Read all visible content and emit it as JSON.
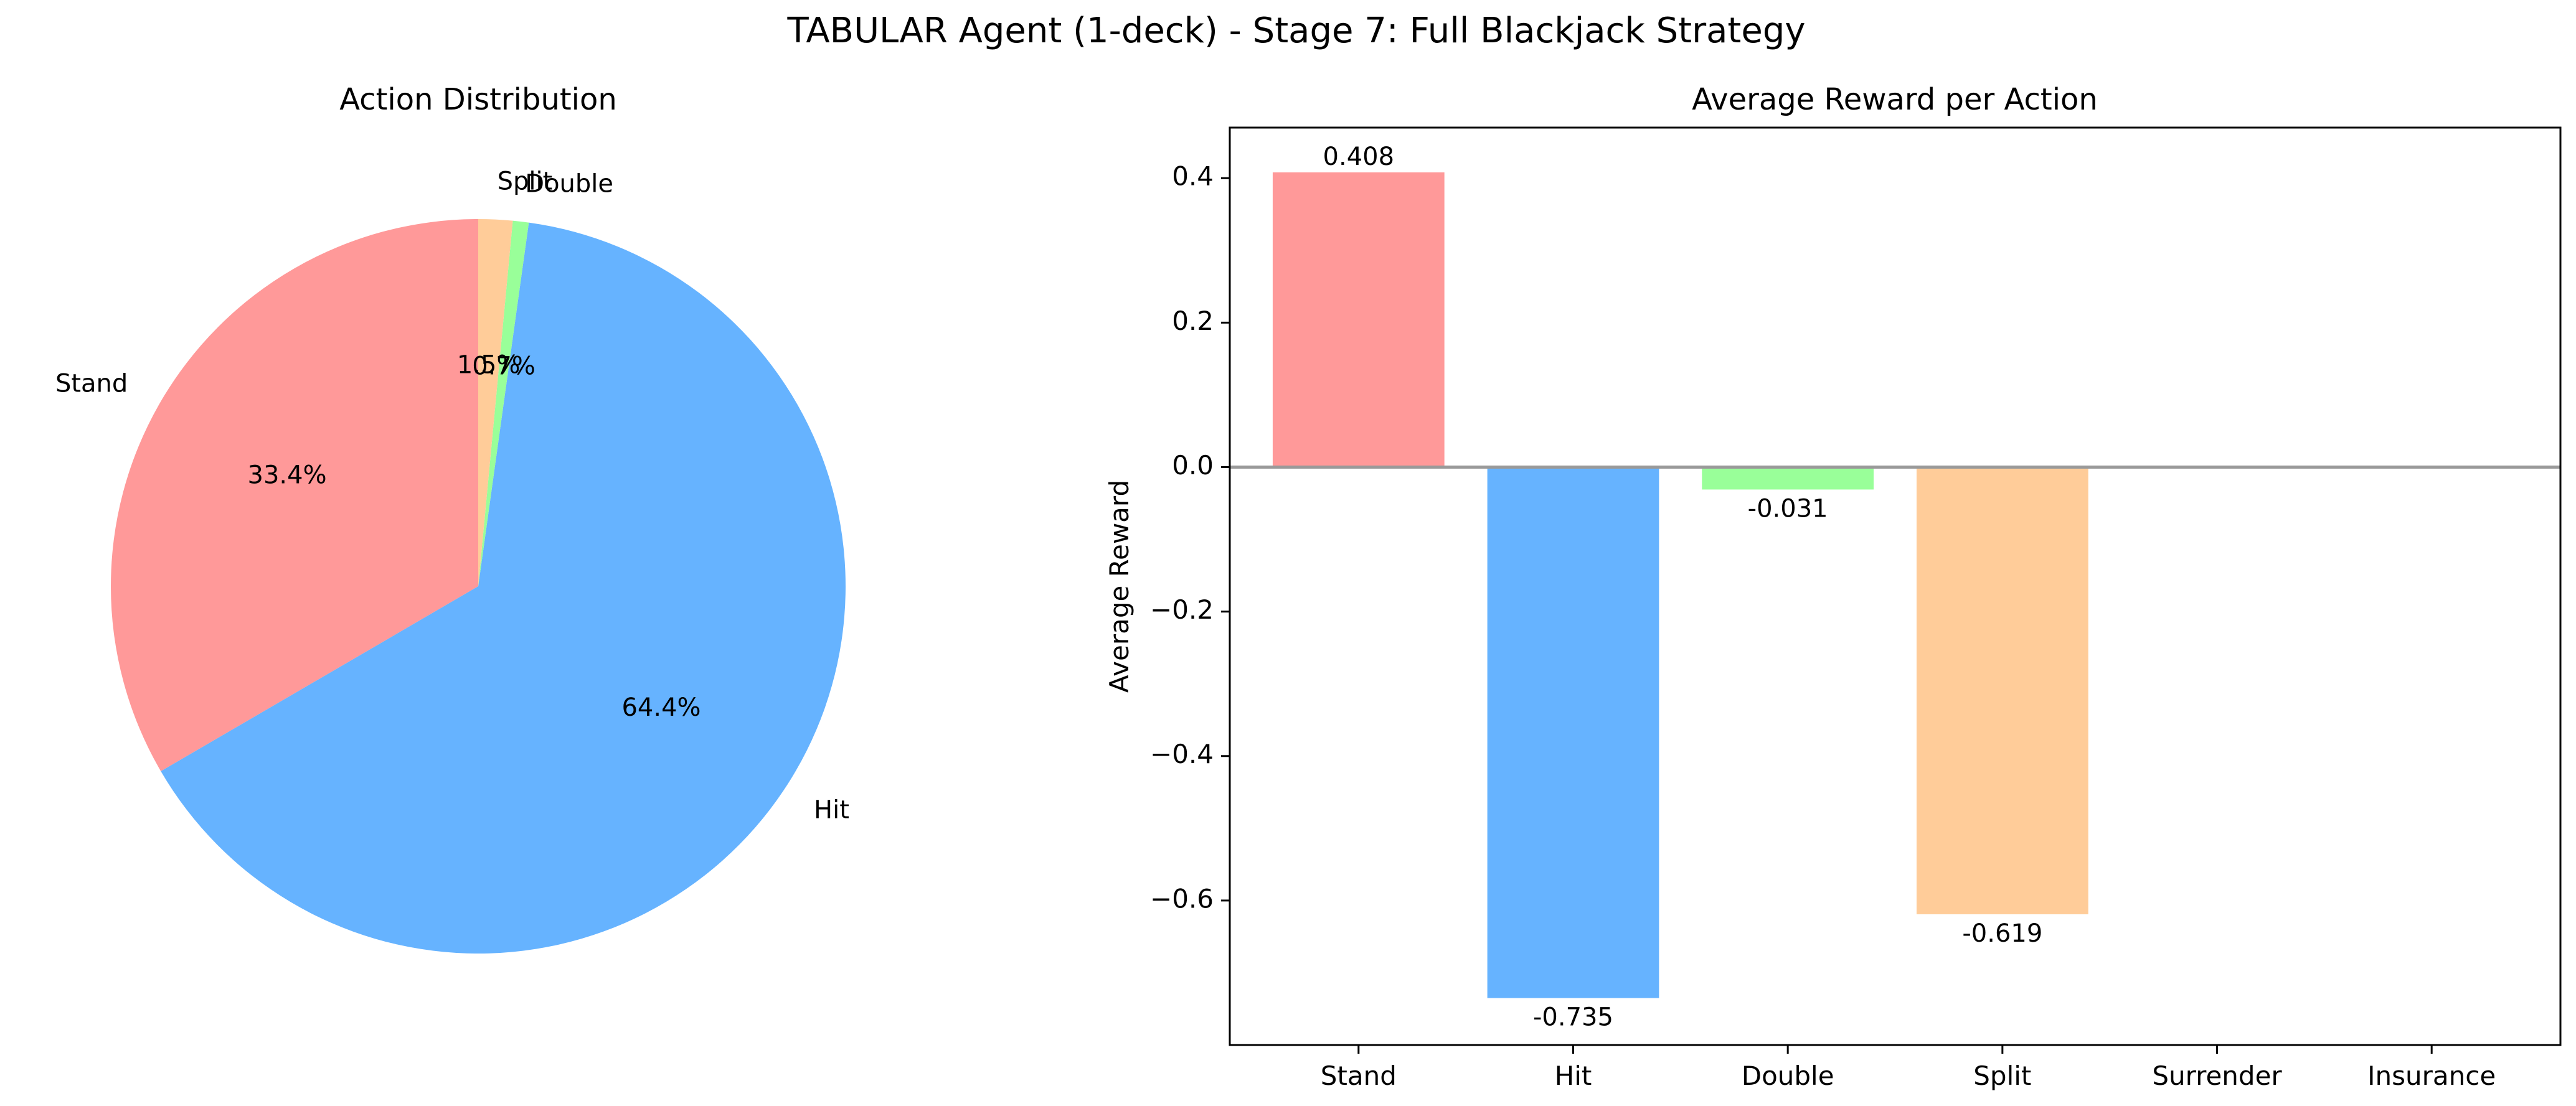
{
  "figure": {
    "title": "TABULAR Agent (1-deck) - Stage 7: Full Blackjack Strategy"
  },
  "chart_data": [
    {
      "type": "pie",
      "title": "Action Distribution",
      "start_angle_deg": 90,
      "direction": "counterclockwise",
      "slices": [
        {
          "label": "Stand",
          "value": 33.4,
          "pct_label": "33.4%",
          "color": "#ff9999"
        },
        {
          "label": "Hit",
          "value": 64.4,
          "pct_label": "64.4%",
          "color": "#66b3ff"
        },
        {
          "label": "Double",
          "value": 0.7,
          "pct_label": "0.7%",
          "color": "#99ff99"
        },
        {
          "label": "Split",
          "value": 1.5,
          "pct_label": "1.5%",
          "color": "#ffcc99"
        }
      ]
    },
    {
      "type": "bar",
      "title": "Average Reward per Action",
      "xlabel": "",
      "ylabel": "Average Reward",
      "ylim": [
        -0.8,
        0.47
      ],
      "yticks": [
        0.4,
        0.2,
        0.0,
        -0.2,
        -0.4,
        -0.6
      ],
      "ytick_labels": [
        "0.4",
        "0.2",
        "0.0",
        "−0.2",
        "−0.4",
        "−0.6"
      ],
      "categories": [
        "Stand",
        "Hit",
        "Double",
        "Split",
        "Surrender",
        "Insurance"
      ],
      "values": [
        0.408,
        -0.735,
        -0.031,
        -0.619,
        null,
        null
      ],
      "value_labels": [
        "0.408",
        "-0.735",
        "-0.031",
        "-0.619",
        "",
        ""
      ],
      "colors": [
        "#ff9999",
        "#66b3ff",
        "#99ff99",
        "#ffcc99",
        "#ff99cc",
        "#c2c2f0"
      ],
      "zero_line": true,
      "grid": false
    }
  ]
}
